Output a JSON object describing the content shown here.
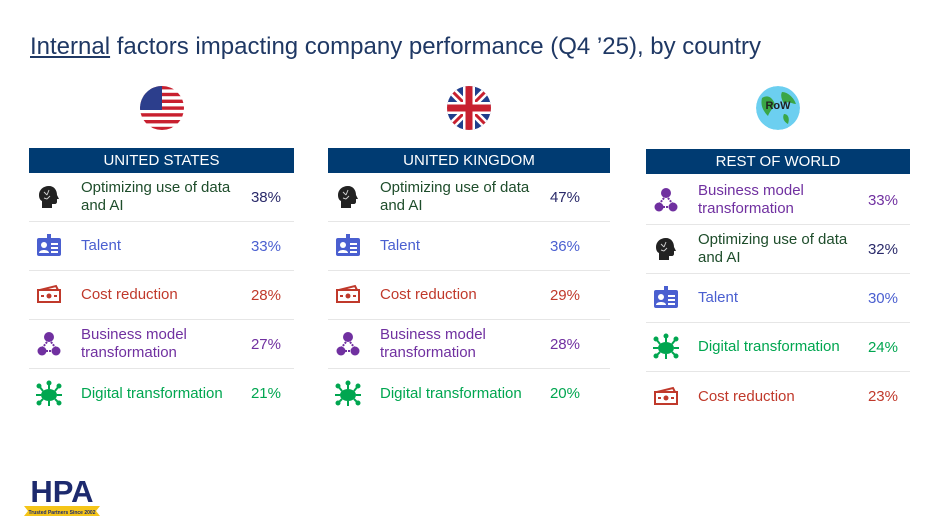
{
  "title": {
    "underlined": "Internal",
    "rest": " factors impacting company performance (Q4 ’25), by country"
  },
  "colors": {
    "header": "#003b72",
    "data_ai": "#1e4d2b",
    "talent": "#4a5fd0",
    "cost": "#c0392b",
    "business": "#7030a0",
    "digital": "#00a650"
  },
  "columns": [
    {
      "name": "UNITED STATES",
      "flag": "us-flag-icon",
      "rows": [
        {
          "type": "data_ai",
          "label": "Optimizing use of data and AI",
          "pct": "38%"
        },
        {
          "type": "talent",
          "label": "Talent",
          "pct": "33%"
        },
        {
          "type": "cost",
          "label": "Cost reduction",
          "pct": "28%"
        },
        {
          "type": "business",
          "label": "Business model transformation",
          "pct": "27%"
        },
        {
          "type": "digital",
          "label": "Digital transformation",
          "pct": "21%"
        }
      ]
    },
    {
      "name": "UNITED KINGDOM",
      "flag": "uk-flag-icon",
      "rows": [
        {
          "type": "data_ai",
          "label": "Optimizing use of data and AI",
          "pct": "47%"
        },
        {
          "type": "talent",
          "label": "Talent",
          "pct": "36%"
        },
        {
          "type": "cost",
          "label": "Cost reduction",
          "pct": "29%"
        },
        {
          "type": "business",
          "label": "Business model transformation",
          "pct": "28%"
        },
        {
          "type": "digital",
          "label": "Digital transformation",
          "pct": "20%"
        }
      ]
    },
    {
      "name": "REST OF WORLD",
      "flag": "globe-icon",
      "flag_text": "RoW",
      "rows": [
        {
          "type": "business",
          "label": "Business model transformation",
          "pct": "33%"
        },
        {
          "type": "data_ai",
          "label": "Optimizing use of data and AI",
          "pct": "32%"
        },
        {
          "type": "talent",
          "label": "Talent",
          "pct": "30%"
        },
        {
          "type": "digital",
          "label": "Digital transformation",
          "pct": "24%"
        },
        {
          "type": "cost",
          "label": "Cost reduction",
          "pct": "23%"
        }
      ]
    }
  ],
  "logo": {
    "text": "HPA",
    "tagline": "Trusted Partners Since 2002"
  }
}
